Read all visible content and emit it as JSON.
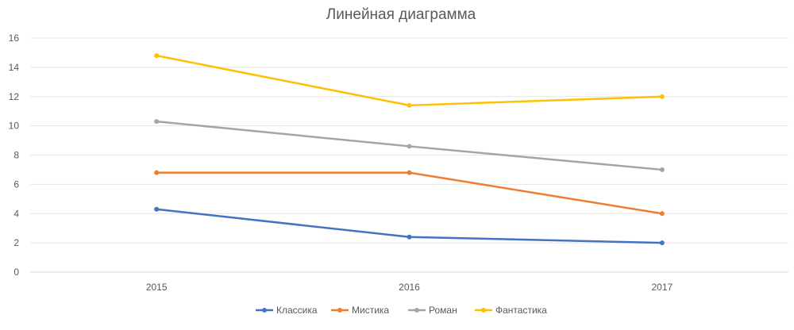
{
  "chart_data": {
    "type": "line",
    "title": "Линейная диаграмма",
    "xlabel": "",
    "ylabel": "",
    "categories": [
      "2015",
      "2016",
      "2017"
    ],
    "ylim": [
      0,
      16
    ],
    "yticks": [
      "0",
      "2",
      "4",
      "6",
      "8",
      "10",
      "12",
      "14",
      "16"
    ],
    "grid": true,
    "legend_position": "bottom",
    "series": [
      {
        "name": "Классика",
        "color": "#4472C4",
        "values": [
          4.3,
          2.4,
          2.0
        ]
      },
      {
        "name": "Мистика",
        "color": "#ED7D31",
        "values": [
          6.8,
          6.8,
          4.0
        ]
      },
      {
        "name": "Роман",
        "color": "#A5A5A5",
        "values": [
          10.3,
          8.6,
          7.0
        ]
      },
      {
        "name": "Фантастика",
        "color": "#FFC000",
        "values": [
          14.8,
          11.4,
          12.0
        ]
      }
    ]
  }
}
